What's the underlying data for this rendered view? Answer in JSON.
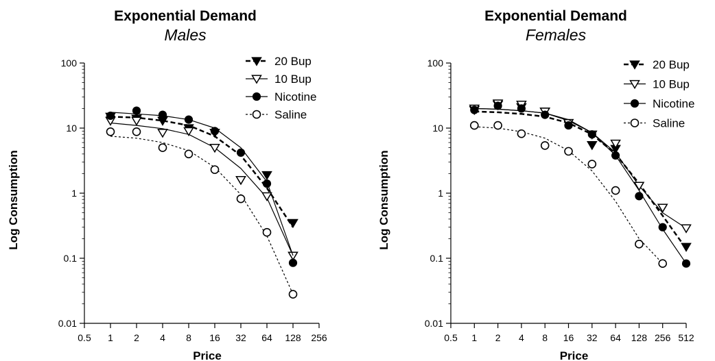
{
  "chart_data": [
    {
      "type": "scatter",
      "title": "Exponential Demand",
      "subtitle": "Males",
      "xlabel": "Price",
      "ylabel": "Log Consumption",
      "xscale": "log2",
      "yscale": "log10",
      "xlim": [
        0.5,
        256
      ],
      "ylim": [
        0.01,
        100
      ],
      "xticks": [
        "0.5",
        "1",
        "2",
        "4",
        "8",
        "16",
        "32",
        "64",
        "128",
        "256"
      ],
      "yticks": [
        "0.01",
        "0.1",
        "1",
        "10",
        "100"
      ],
      "legend_position": "top-right",
      "series": [
        {
          "name": "20 Bup",
          "marker": "triangle-down-filled",
          "line": "dashed-bold",
          "x": [
            1,
            2,
            4,
            8,
            16,
            32,
            64,
            128
          ],
          "y": [
            15,
            14,
            13,
            10,
            8.5,
            1.6,
            1.9,
            0.35
          ],
          "fit": [
            [
              1,
              15
            ],
            [
              2,
              14.5
            ],
            [
              4,
              13
            ],
            [
              8,
              11
            ],
            [
              16,
              7.5
            ],
            [
              32,
              3.8
            ],
            [
              64,
              1.2
            ],
            [
              128,
              0.3
            ]
          ]
        },
        {
          "name": "10 Bup",
          "marker": "triangle-down-open",
          "line": "solid",
          "x": [
            1,
            2,
            4,
            8,
            16,
            32,
            64,
            128
          ],
          "y": [
            13,
            13,
            8.5,
            9,
            5,
            1.6,
            0.9,
            0.11
          ],
          "fit": [
            [
              1,
              12
            ],
            [
              2,
              11
            ],
            [
              4,
              9.8
            ],
            [
              8,
              8
            ],
            [
              16,
              5
            ],
            [
              32,
              2.4
            ],
            [
              64,
              0.85
            ],
            [
              128,
              0.11
            ]
          ]
        },
        {
          "name": "Nicotine",
          "marker": "circle-filled",
          "line": "solid",
          "x": [
            1,
            2,
            4,
            8,
            16,
            32,
            64,
            128
          ],
          "y": [
            15.5,
            18.5,
            16,
            13.5,
            9,
            4.2,
            1.4,
            0.085
          ],
          "fit": [
            [
              1,
              17.5
            ],
            [
              2,
              16.5
            ],
            [
              4,
              15.5
            ],
            [
              8,
              13.5
            ],
            [
              16,
              10
            ],
            [
              32,
              5
            ],
            [
              64,
              1.5
            ],
            [
              128,
              0.11
            ]
          ]
        },
        {
          "name": "Saline",
          "marker": "circle-open",
          "line": "dotted",
          "x": [
            1,
            2,
            4,
            8,
            16,
            32,
            64,
            128
          ],
          "y": [
            8.8,
            8.8,
            5,
            4,
            2.3,
            0.82,
            0.25,
            0.028
          ],
          "fit": [
            [
              1,
              7.5
            ],
            [
              2,
              7
            ],
            [
              4,
              6
            ],
            [
              8,
              4.5
            ],
            [
              16,
              2.5
            ],
            [
              32,
              0.95
            ],
            [
              64,
              0.22
            ],
            [
              128,
              0.028
            ]
          ]
        }
      ]
    },
    {
      "type": "scatter",
      "title": "Exponential Demand",
      "subtitle": "Females",
      "xlabel": "Price",
      "ylabel": "Log Consumption",
      "xscale": "log2",
      "yscale": "log10",
      "xlim": [
        0.5,
        512
      ],
      "ylim": [
        0.01,
        100
      ],
      "xticks": [
        "0.5",
        "1",
        "2",
        "4",
        "8",
        "16",
        "32",
        "64",
        "128",
        "256",
        "512"
      ],
      "yticks": [
        "0.01",
        "0.1",
        "1",
        "10",
        "100"
      ],
      "legend_position": "top-right",
      "series": [
        {
          "name": "20 Bup",
          "marker": "triangle-down-filled",
          "line": "dashed-bold",
          "x": [
            1,
            2,
            4,
            8,
            16,
            32,
            64,
            128,
            256,
            512
          ],
          "y": [
            19,
            23,
            21,
            18,
            12,
            5.5,
            4.8,
            1.3,
            0.6,
            0.15
          ],
          "fit": [
            [
              1,
              18
            ],
            [
              2,
              17.5
            ],
            [
              4,
              16.5
            ],
            [
              8,
              15
            ],
            [
              16,
              12
            ],
            [
              32,
              8
            ],
            [
              64,
              4
            ],
            [
              128,
              1.4
            ],
            [
              256,
              0.45
            ],
            [
              512,
              0.14
            ]
          ]
        },
        {
          "name": "10 Bup",
          "marker": "triangle-down-open",
          "line": "solid",
          "x": [
            1,
            2,
            4,
            8,
            16,
            32,
            64,
            128,
            256,
            512
          ],
          "y": [
            20,
            24,
            23,
            18,
            12,
            8,
            5.8,
            1.3,
            0.6,
            0.29
          ],
          "fit": [
            [
              1,
              20
            ],
            [
              2,
              19.5
            ],
            [
              4,
              18.5
            ],
            [
              8,
              17
            ],
            [
              16,
              13
            ],
            [
              32,
              8.5
            ],
            [
              64,
              4.2
            ],
            [
              128,
              1.3
            ],
            [
              256,
              0.5
            ],
            [
              512,
              0.29
            ]
          ]
        },
        {
          "name": "Nicotine",
          "marker": "circle-filled",
          "line": "solid",
          "x": [
            1,
            2,
            4,
            8,
            16,
            32,
            64,
            128,
            256,
            512
          ],
          "y": [
            19,
            22,
            20,
            16,
            11,
            8,
            3.8,
            0.9,
            0.3,
            0.083
          ],
          "fit": [
            [
              1,
              20
            ],
            [
              2,
              19.5
            ],
            [
              4,
              18.5
            ],
            [
              8,
              17
            ],
            [
              16,
              13.5
            ],
            [
              32,
              8.5
            ],
            [
              64,
              3.8
            ],
            [
              128,
              1.1
            ],
            [
              256,
              0.28
            ],
            [
              512,
              0.083
            ]
          ]
        },
        {
          "name": "Saline",
          "marker": "circle-open",
          "line": "dotted",
          "x": [
            1,
            2,
            4,
            8,
            16,
            32,
            64,
            128,
            256
          ],
          "y": [
            11,
            11,
            8.2,
            5.4,
            4.4,
            2.8,
            1.1,
            0.165,
            0.083
          ],
          "fit": [
            [
              1,
              10.5
            ],
            [
              2,
              10
            ],
            [
              4,
              8.8
            ],
            [
              8,
              7
            ],
            [
              16,
              4.5
            ],
            [
              32,
              2.2
            ],
            [
              64,
              0.75
            ],
            [
              128,
              0.2
            ],
            [
              256,
              0.083
            ]
          ]
        }
      ]
    }
  ]
}
